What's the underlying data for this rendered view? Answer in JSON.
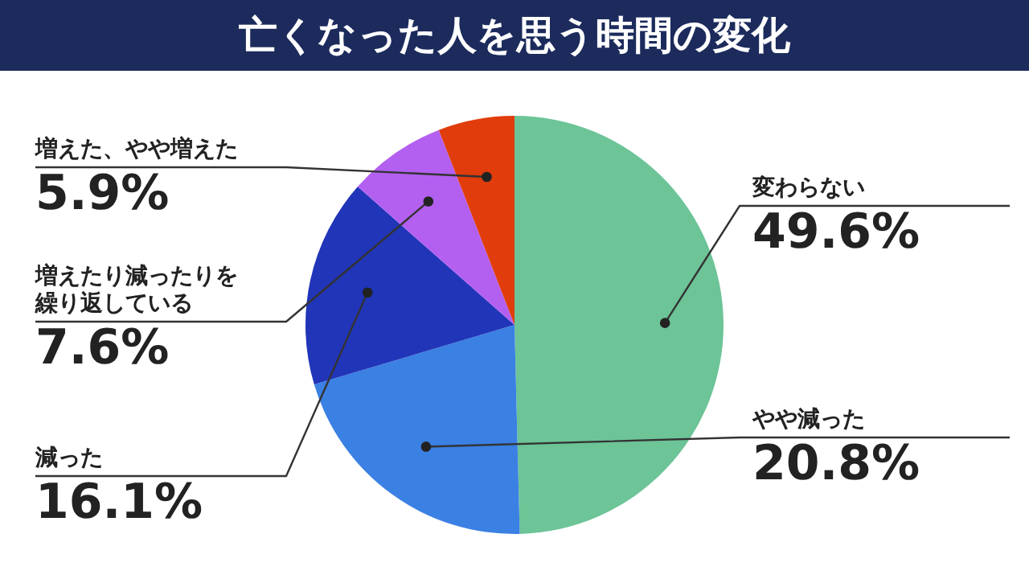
{
  "chart_data": {
    "type": "pie",
    "title": "亡くなった人を思う時間の変化",
    "categories": [
      "変わらない",
      "やや減った",
      "減った",
      "増えたり減ったりを繰り返している",
      "増えた、やや増えた"
    ],
    "values": [
      49.6,
      20.8,
      16.1,
      7.6,
      5.9
    ],
    "value_labels": [
      "49.6%",
      "20.8%",
      "16.1%",
      "7.6%",
      "5.9%"
    ],
    "colors": [
      "#6cc497",
      "#3b80e3",
      "#2135b8",
      "#b360f0",
      "#e03c0c"
    ]
  }
}
